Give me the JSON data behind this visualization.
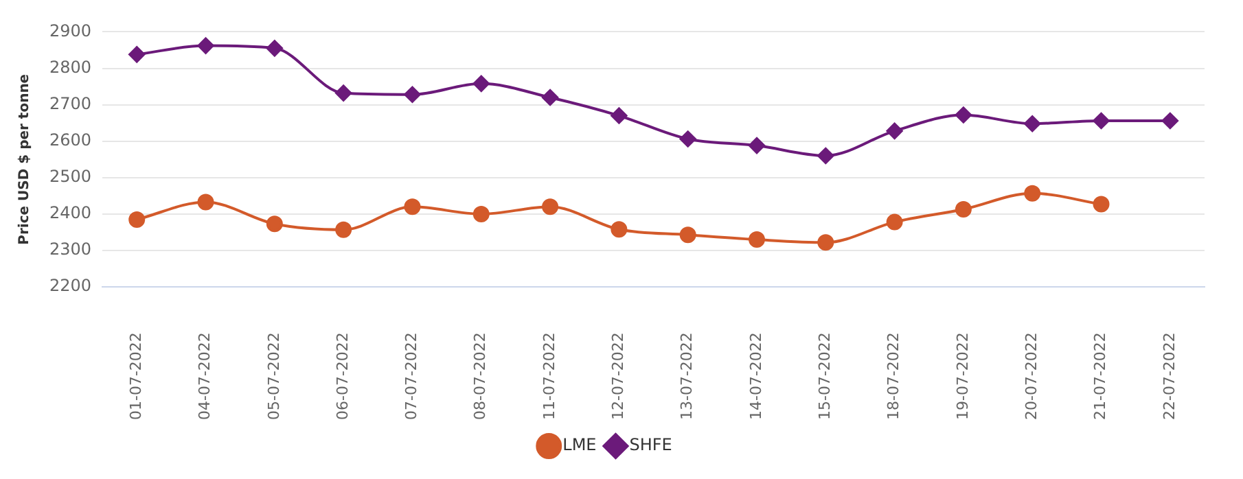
{
  "chart_data": {
    "type": "line",
    "ylabel": "Price USD $ per tonne",
    "categories": [
      "01-07-2022",
      "04-07-2022",
      "05-07-2022",
      "06-07-2022",
      "07-07-2022",
      "08-07-2022",
      "11-07-2022",
      "12-07-2022",
      "13-07-2022",
      "14-07-2022",
      "15-07-2022",
      "18-07-2022",
      "19-07-2022",
      "20-07-2022",
      "21-07-2022",
      "22-07-2022"
    ],
    "series": [
      {
        "name": "LME",
        "color": "#d35a2a",
        "marker": "circle",
        "values": [
          2385,
          2433,
          2373,
          2357,
          2420,
          2400,
          2420,
          2358,
          2343,
          2330,
          2322,
          2378,
          2413,
          2457,
          2427,
          null
        ]
      },
      {
        "name": "SHFE",
        "color": "#6b1a7a",
        "marker": "diamond",
        "values": [
          2838,
          2862,
          2855,
          2732,
          2728,
          2758,
          2720,
          2670,
          2606,
          2588,
          2560,
          2628,
          2672,
          2648,
          2656,
          2656
        ]
      }
    ],
    "ylim": [
      2200,
      2900
    ],
    "yticks": [
      2200,
      2300,
      2400,
      2500,
      2600,
      2700,
      2800,
      2900
    ],
    "grid": "y",
    "legend": "bottom"
  }
}
